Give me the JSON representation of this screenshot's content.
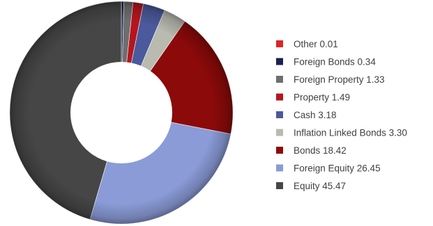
{
  "chart_data": {
    "type": "pie",
    "variant": "donut",
    "title": "",
    "legend_position": "right",
    "start_angle_deg": 0,
    "direction": "clockwise",
    "slices": [
      {
        "label": "Other",
        "value": 0.01,
        "value_text": "0.01",
        "color": "#e02323"
      },
      {
        "label": "Foreign Bonds",
        "value": 0.34,
        "value_text": "0.34",
        "color": "#1a2152"
      },
      {
        "label": "Foreign Property",
        "value": 1.33,
        "value_text": "1.33",
        "color": "#6e6e6e"
      },
      {
        "label": "Property",
        "value": 1.49,
        "value_text": "1.49",
        "color": "#b5161e"
      },
      {
        "label": "Cash",
        "value": 3.18,
        "value_text": "3.18",
        "color": "#4b5a9c"
      },
      {
        "label": "Inflation Linked Bonds",
        "value": 3.3,
        "value_text": "3.30",
        "color": "#b9bab0"
      },
      {
        "label": "Bonds",
        "value": 18.42,
        "value_text": "18.42",
        "color": "#8c0a0a"
      },
      {
        "label": "Foreign Equity",
        "value": 26.45,
        "value_text": "26.45",
        "color": "#8a9bd7"
      },
      {
        "label": "Equity",
        "value": 45.47,
        "value_text": "45.47",
        "color": "#464646"
      }
    ]
  }
}
